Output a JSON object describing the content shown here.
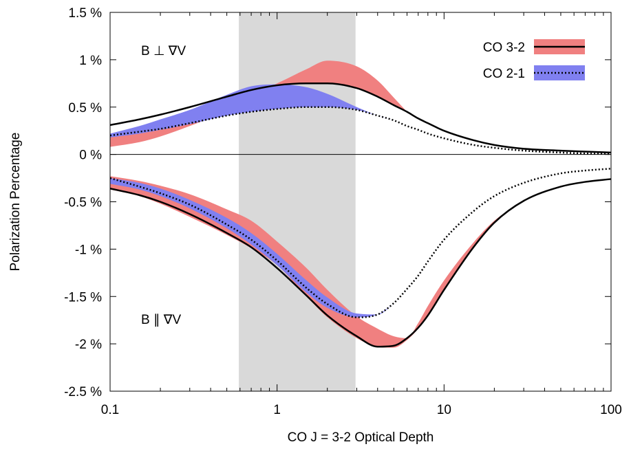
{
  "chart_data": {
    "type": "line",
    "title": "",
    "xlabel": "CO J = 3-2 Optical Depth",
    "ylabel": "Polarization Percentage",
    "xscale": "log",
    "xlim": [
      0.1,
      100
    ],
    "ylim": [
      -2.5,
      1.5
    ],
    "x_ticks": [
      0.1,
      1,
      10,
      100
    ],
    "x_tick_labels": [
      "0.1",
      "1",
      "10",
      "100"
    ],
    "y_ticks": [
      -2.5,
      -2,
      -1.5,
      -1,
      -0.5,
      0,
      0.5,
      1,
      1.5
    ],
    "y_tick_labels": [
      "-2.5 %",
      "-2 %",
      "-1.5 %",
      "-1 %",
      "-0.5 %",
      "0 %",
      "0.5 %",
      "1 %",
      "1.5 %"
    ],
    "grid": false,
    "legend_position": "top-right",
    "shaded_region": {
      "x_from": 0.59,
      "x_to": 2.95,
      "color": "#d9d9d9"
    },
    "annotations": [
      "B ⊥ ∇V",
      "B ∥ ∇V"
    ],
    "colors": {
      "co32_band": "#f08080",
      "co21_band": "#8080f0",
      "line": "#000000",
      "shade": "#d9d9d9"
    },
    "legend": [
      {
        "label": "CO 3-2",
        "band_color": "#f08080",
        "line_style": "solid"
      },
      {
        "label": "CO 2-1",
        "band_color": "#8080f0",
        "line_style": "dotted"
      }
    ],
    "x": [
      0.1,
      0.15,
      0.2,
      0.3,
      0.5,
      0.7,
      1,
      1.5,
      2,
      3,
      4,
      5,
      6,
      7,
      8,
      10,
      15,
      20,
      30,
      50,
      70,
      100
    ],
    "series": [
      {
        "name": "CO 3-2",
        "group": "perp",
        "kind": "line",
        "style": "solid",
        "values": [
          0.31,
          0.37,
          0.42,
          0.5,
          0.61,
          0.68,
          0.73,
          0.75,
          0.75,
          0.7,
          0.61,
          0.52,
          0.45,
          0.38,
          0.33,
          0.25,
          0.15,
          0.1,
          0.06,
          0.04,
          0.03,
          0.02
        ]
      },
      {
        "name": "CO 2-1",
        "group": "perp",
        "kind": "line",
        "style": "dotted",
        "values": [
          0.2,
          0.24,
          0.27,
          0.33,
          0.41,
          0.45,
          0.48,
          0.5,
          0.5,
          0.47,
          0.41,
          0.36,
          0.3,
          0.26,
          0.22,
          0.17,
          0.1,
          0.07,
          0.04,
          0.02,
          0.01,
          0.005
        ]
      },
      {
        "name": "CO 3-2",
        "group": "perp",
        "kind": "band",
        "lower": [
          0.08,
          0.13,
          0.19,
          0.3,
          0.46,
          0.6,
          0.72,
          0.75,
          0.75,
          0.7,
          0.61,
          0.52,
          0.45
        ],
        "upper": [
          0.2,
          0.26,
          0.31,
          0.4,
          0.53,
          0.64,
          0.75,
          0.9,
          0.99,
          0.93,
          0.78,
          0.6,
          0.45
        ],
        "x_subset": [
          0.1,
          0.15,
          0.2,
          0.3,
          0.5,
          0.7,
          1,
          1.5,
          2,
          3,
          4,
          5,
          6
        ]
      },
      {
        "name": "CO 2-1",
        "group": "perp",
        "kind": "band",
        "lower": [
          0.18,
          0.22,
          0.26,
          0.32,
          0.41,
          0.45,
          0.48,
          0.5,
          0.5,
          0.47,
          0.41,
          0.36
        ],
        "upper": [
          0.22,
          0.3,
          0.37,
          0.47,
          0.63,
          0.72,
          0.74,
          0.71,
          0.64,
          0.5,
          0.41,
          0.36
        ],
        "x_subset": [
          0.1,
          0.15,
          0.2,
          0.3,
          0.5,
          0.7,
          1,
          1.5,
          2,
          3,
          4,
          5
        ]
      },
      {
        "name": "CO 3-2",
        "group": "par",
        "kind": "line",
        "style": "solid",
        "values": [
          -0.36,
          -0.43,
          -0.5,
          -0.63,
          -0.83,
          -0.98,
          -1.2,
          -1.49,
          -1.7,
          -1.92,
          -2.03,
          -2.02,
          -1.94,
          -1.83,
          -1.7,
          -1.43,
          -0.98,
          -0.72,
          -0.49,
          -0.34,
          -0.29,
          -0.26
        ]
      },
      {
        "name": "CO 2-1",
        "group": "par",
        "kind": "line",
        "style": "dotted",
        "values": [
          -0.25,
          -0.34,
          -0.41,
          -0.53,
          -0.74,
          -0.9,
          -1.12,
          -1.41,
          -1.58,
          -1.72,
          -1.69,
          -1.57,
          -1.42,
          -1.28,
          -1.13,
          -0.9,
          -0.6,
          -0.44,
          -0.3,
          -0.2,
          -0.17,
          -0.15
        ]
      },
      {
        "name": "CO 3-2",
        "group": "par",
        "kind": "band",
        "lower": [
          -0.37,
          -0.44,
          -0.52,
          -0.66,
          -0.85,
          -0.99,
          -1.17,
          -1.5,
          -1.72,
          -1.94,
          -2.03,
          -2.04,
          -1.96,
          -1.84,
          -1.7,
          -1.43,
          -0.98,
          -0.72,
          -0.49
        ],
        "upper": [
          -0.23,
          -0.28,
          -0.33,
          -0.42,
          -0.58,
          -0.7,
          -0.92,
          -1.2,
          -1.43,
          -1.71,
          -1.84,
          -1.92,
          -1.94,
          -1.78,
          -1.6,
          -1.33,
          -0.93,
          -0.7,
          -0.49
        ],
        "x_subset": [
          0.1,
          0.15,
          0.2,
          0.3,
          0.5,
          0.7,
          1,
          1.5,
          2,
          3,
          4,
          5,
          6,
          7,
          8,
          10,
          15,
          20,
          30
        ]
      },
      {
        "name": "CO 2-1",
        "group": "par",
        "kind": "band",
        "lower": [
          -0.31,
          -0.37,
          -0.44,
          -0.57,
          -0.78,
          -0.95,
          -1.17,
          -1.46,
          -1.62,
          -1.72,
          -1.69,
          -1.57,
          -1.42,
          -1.28,
          -1.13,
          -0.9,
          -0.6
        ],
        "upper": [
          -0.25,
          -0.3,
          -0.36,
          -0.48,
          -0.67,
          -0.83,
          -1.05,
          -1.33,
          -1.51,
          -1.68,
          -1.69,
          -1.57,
          -1.42,
          -1.28,
          -1.13,
          -0.9,
          -0.6
        ],
        "x_subset": [
          0.1,
          0.15,
          0.2,
          0.3,
          0.5,
          0.7,
          1,
          1.5,
          2,
          3,
          4,
          5,
          6,
          7,
          8,
          10,
          15
        ]
      }
    ]
  }
}
